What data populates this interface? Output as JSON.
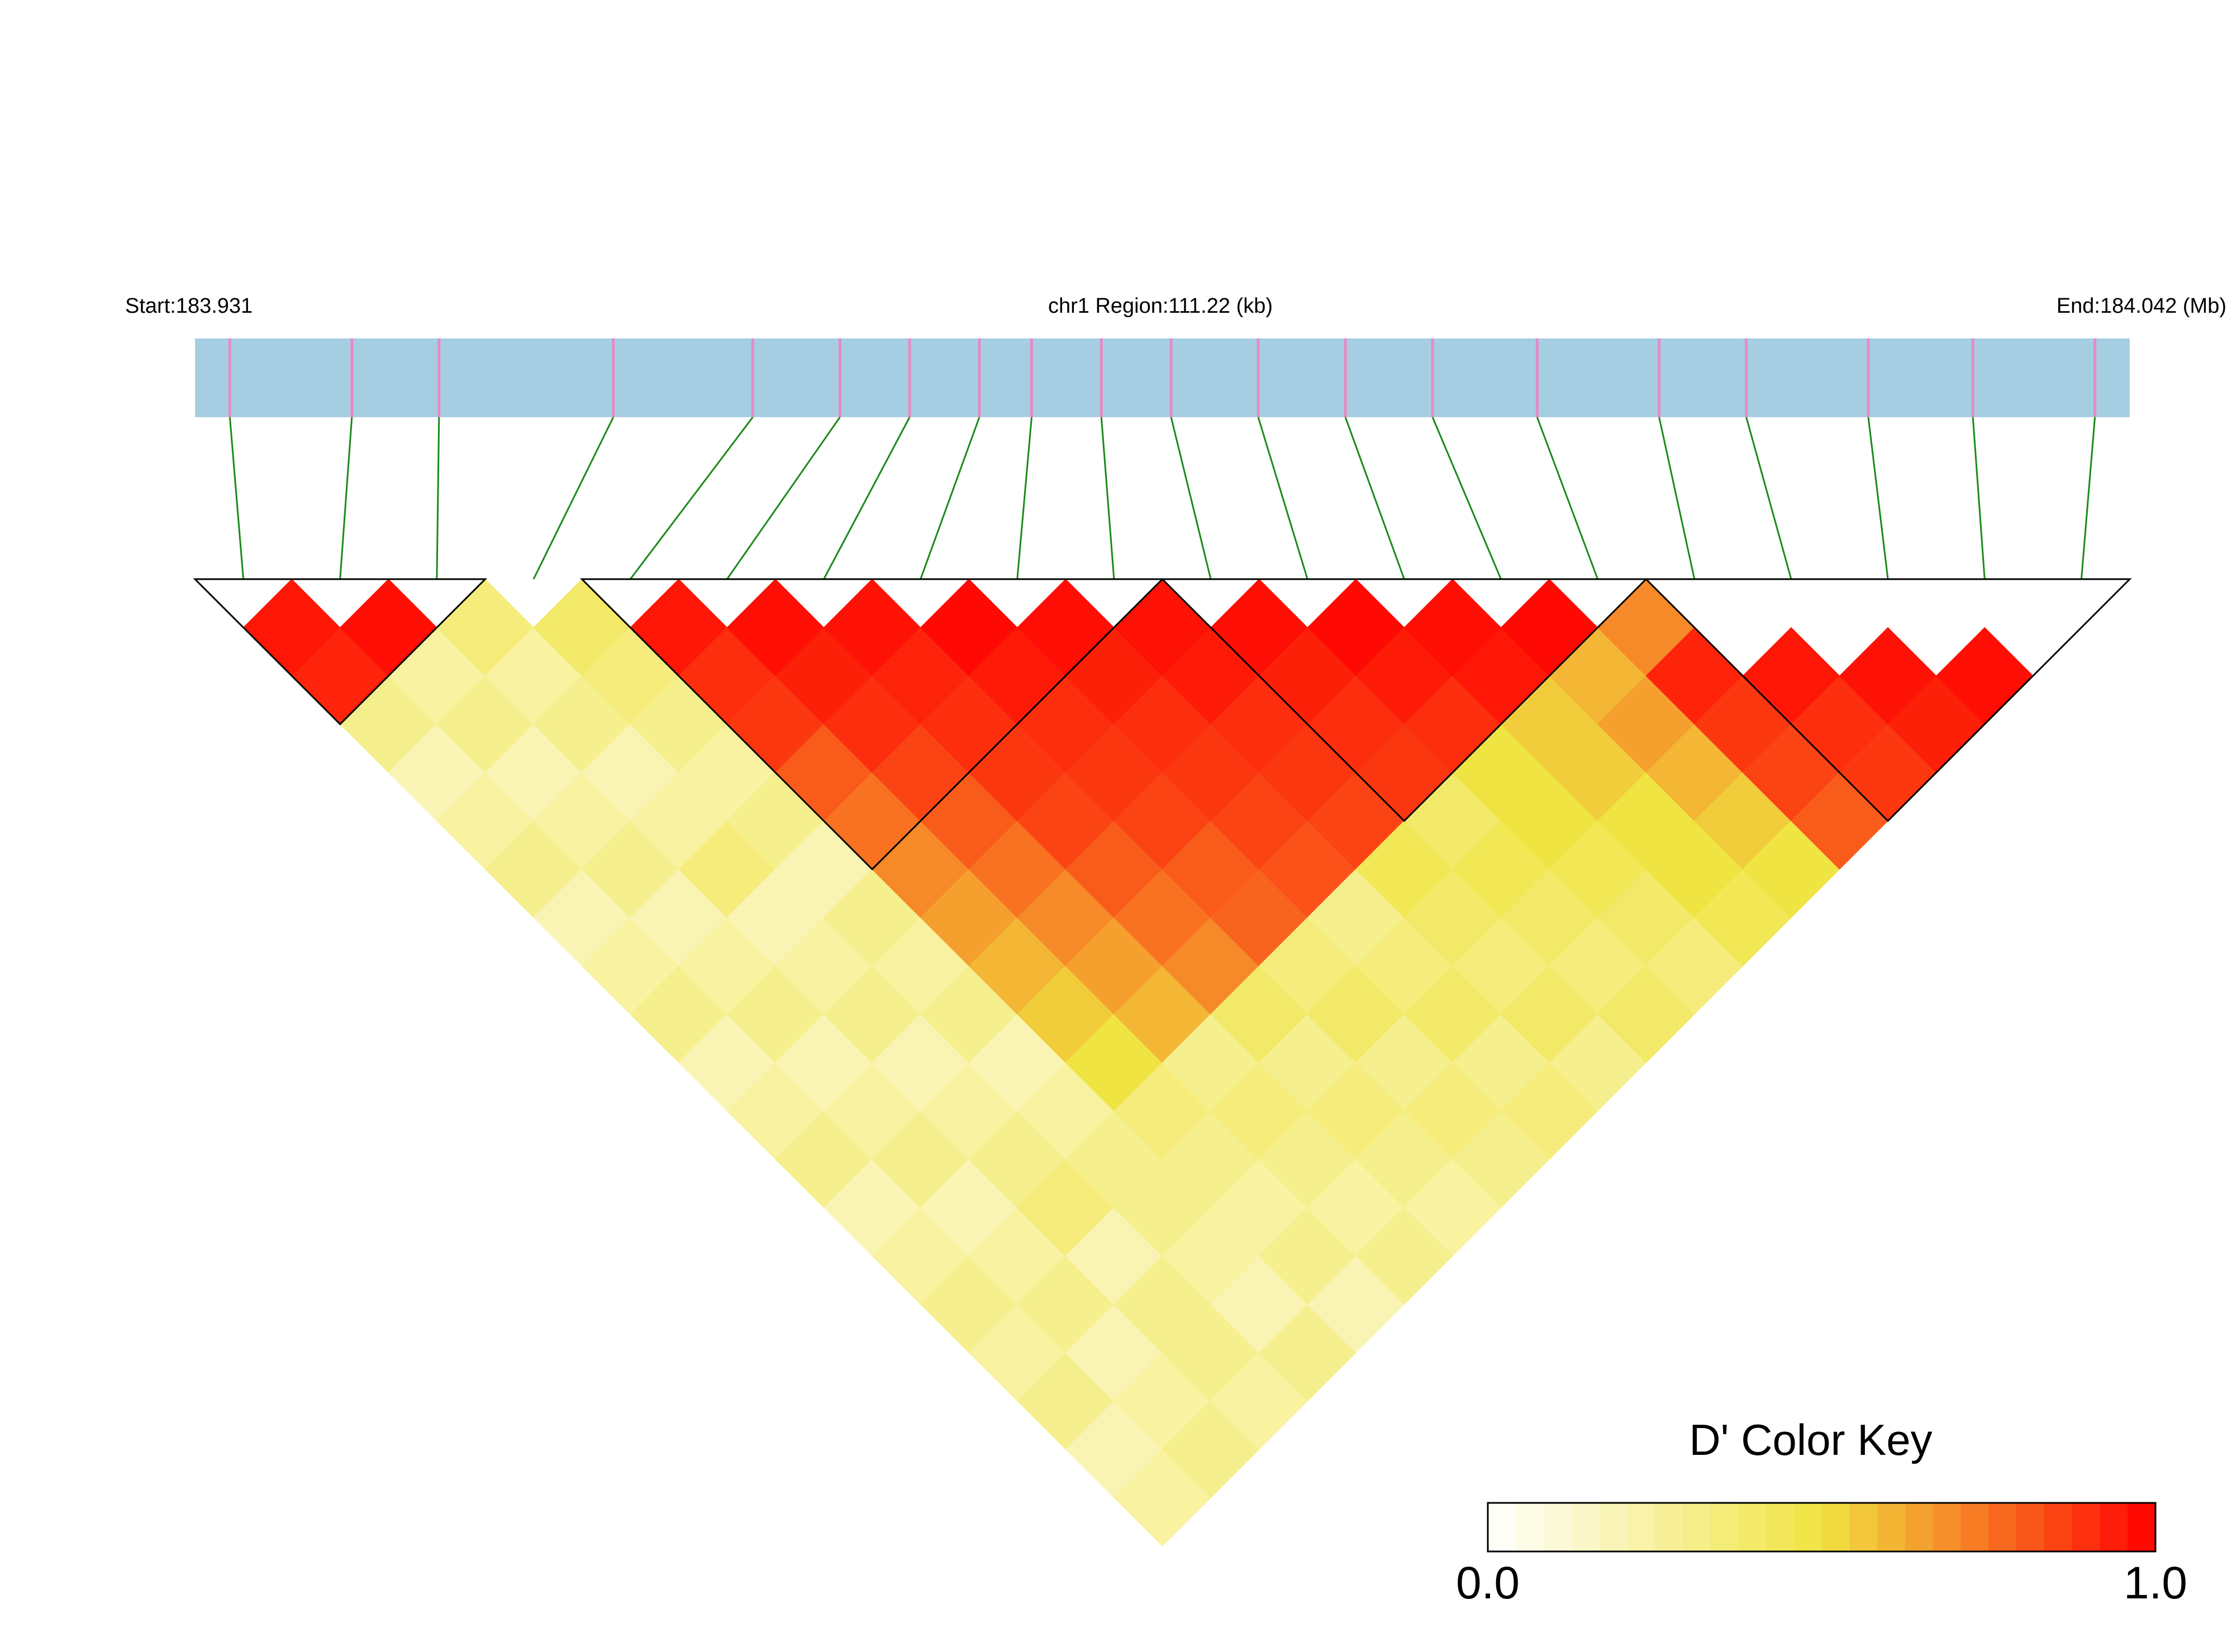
{
  "chart_data": {
    "type": "ld-heatmap",
    "start_label": "Start:183.931",
    "title": "chr1 Region:111.22 (kb)",
    "end_label": "End:184.042 (Mb)",
    "xlim": [
      183.931,
      184.042
    ],
    "positions": [
      183.933,
      183.94,
      183.945,
      183.955,
      183.963,
      183.968,
      183.972,
      183.976,
      183.979,
      183.983,
      183.987,
      183.992,
      183.997,
      184.002,
      184.008,
      184.015,
      184.02,
      184.027,
      184.033,
      184.04
    ],
    "matrix": [
      [],
      [
        0.95
      ],
      [
        0.92,
        0.97
      ],
      [
        0.3,
        0.25,
        0.35
      ],
      [
        0.2,
        0.3,
        0.25,
        0.4
      ],
      [
        0.25,
        0.2,
        0.3,
        0.35,
        0.95
      ],
      [
        0.3,
        0.25,
        0.2,
        0.3,
        0.9,
        0.97
      ],
      [
        0.2,
        0.3,
        0.25,
        0.25,
        0.88,
        0.93,
        0.96
      ],
      [
        0.25,
        0.2,
        0.35,
        0.3,
        0.8,
        0.9,
        0.92,
        0.98
      ],
      [
        0.3,
        0.25,
        0.2,
        0.2,
        0.75,
        0.85,
        0.9,
        0.94,
        0.97
      ],
      [
        0.2,
        0.3,
        0.25,
        0.3,
        0.7,
        0.8,
        0.88,
        0.9,
        0.93,
        0.96
      ],
      [
        0.25,
        0.2,
        0.3,
        0.25,
        0.65,
        0.75,
        0.85,
        0.88,
        0.9,
        0.94,
        0.97
      ],
      [
        0.3,
        0.25,
        0.2,
        0.3,
        0.6,
        0.7,
        0.8,
        0.85,
        0.88,
        0.9,
        0.93,
        0.98
      ],
      [
        0.2,
        0.3,
        0.25,
        0.2,
        0.55,
        0.65,
        0.75,
        0.8,
        0.85,
        0.88,
        0.9,
        0.94,
        0.97
      ],
      [
        0.25,
        0.2,
        0.3,
        0.25,
        0.5,
        0.6,
        0.7,
        0.78,
        0.82,
        0.85,
        0.88,
        0.9,
        0.95,
        0.98
      ],
      [
        0.3,
        0.25,
        0.35,
        0.3,
        0.35,
        0.3,
        0.4,
        0.35,
        0.3,
        0.45,
        0.4,
        0.5,
        0.55,
        0.6,
        0.7
      ],
      [
        0.25,
        0.3,
        0.2,
        0.3,
        0.3,
        0.35,
        0.3,
        0.4,
        0.35,
        0.4,
        0.45,
        0.5,
        0.55,
        0.65,
        0.92
      ],
      [
        0.3,
        0.2,
        0.3,
        0.25,
        0.25,
        0.3,
        0.35,
        0.3,
        0.4,
        0.35,
        0.4,
        0.45,
        0.5,
        0.6,
        0.88,
        0.95
      ],
      [
        0.2,
        0.25,
        0.3,
        0.2,
        0.3,
        0.25,
        0.3,
        0.35,
        0.3,
        0.4,
        0.35,
        0.4,
        0.5,
        0.55,
        0.85,
        0.9,
        0.96
      ],
      [
        0.25,
        0.3,
        0.25,
        0.3,
        0.2,
        0.3,
        0.25,
        0.3,
        0.35,
        0.3,
        0.4,
        0.35,
        0.45,
        0.5,
        0.8,
        0.88,
        0.93,
        0.97
      ]
    ],
    "blocks": [
      [
        0,
        2
      ],
      [
        4,
        9
      ],
      [
        10,
        14
      ],
      [
        15,
        19
      ]
    ],
    "colorscale": [
      "#ffffff",
      "#f0e442",
      "#ff0000"
    ],
    "strip_color": "#a6cee3",
    "snp_color": "#e78ac3",
    "link_color": "#1a8a1a",
    "legend_title": "D' Color Key",
    "zlim": [
      0,
      1
    ],
    "zticks": [
      {
        "value": 0,
        "label": "0.0"
      },
      {
        "value": 1,
        "label": "1.0"
      }
    ]
  }
}
